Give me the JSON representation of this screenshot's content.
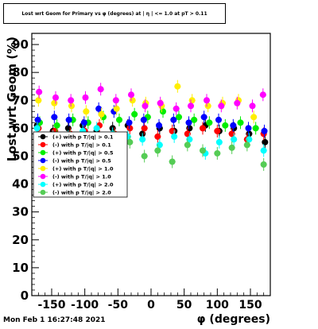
{
  "chart_data": {
    "type": "scatter",
    "title": "Lost wrt Geom for Primary vs φ (degrees) at | η | <= 1.0 at pT > 0.11",
    "xlabel": "φ (degrees)",
    "ylabel": "Lost wrt Geom (%)",
    "xlim": [
      -180,
      180
    ],
    "ylim": [
      0,
      94
    ],
    "xticks": [
      -150,
      -100,
      -50,
      0,
      50,
      100,
      150
    ],
    "yticks": [
      0,
      10,
      20,
      30,
      40,
      50,
      60,
      70,
      80,
      90
    ],
    "legend_position": "left-middle",
    "grid": false,
    "series": [
      {
        "name": "(+) with p T/|q| > 0.1",
        "color": "#000000",
        "x": [
          -172,
          -148,
          -125,
          -103,
          -82,
          -58,
          -35,
          -13,
          13,
          35,
          58,
          82,
          103,
          125,
          148,
          172
        ],
        "y": [
          61,
          59,
          60,
          61,
          59,
          60,
          61,
          58,
          60,
          59,
          60,
          61,
          59,
          60,
          58,
          55
        ]
      },
      {
        "name": "(-) with p T/|q| > 0.1",
        "color": "#ff0000",
        "x": [
          -170,
          -145,
          -122,
          -100,
          -78,
          -55,
          -32,
          -10,
          10,
          32,
          55,
          78,
          100,
          122,
          145,
          170
        ],
        "y": [
          60,
          59,
          58,
          59,
          61,
          58,
          60,
          60,
          57,
          59,
          58,
          60,
          59,
          58,
          56,
          58
        ]
      },
      {
        "name": "(+) with p T/|q| > 0.5",
        "color": "#00ee00",
        "x": [
          -168,
          -142,
          -118,
          -95,
          -72,
          -48,
          -25,
          -5,
          18,
          42,
          65,
          88,
          112,
          135,
          158
        ],
        "y": [
          62,
          61,
          63,
          62,
          64,
          63,
          65,
          64,
          66,
          64,
          63,
          62,
          61,
          62,
          60
        ]
      },
      {
        "name": "(-) with p T/|q| > 0.5",
        "color": "#0000ff",
        "x": [
          -171,
          -146,
          -124,
          -101,
          -79,
          -56,
          -33,
          -11,
          12,
          34,
          57,
          80,
          102,
          124,
          147,
          171
        ],
        "y": [
          63,
          64,
          63,
          62,
          67,
          66,
          62,
          63,
          61,
          63,
          62,
          64,
          63,
          61,
          60,
          59
        ]
      },
      {
        "name": "(+) with p T/|q| > 1.0",
        "color": "#ffee00",
        "x": [
          -170,
          -146,
          -120,
          -98,
          -75,
          -52,
          -28,
          -8,
          16,
          40,
          62,
          86,
          108,
          132,
          155
        ],
        "y": [
          70,
          69,
          68,
          66,
          65,
          67,
          70,
          69,
          68,
          75,
          70,
          68,
          69,
          70,
          64
        ]
      },
      {
        "name": "(-) with p T/|q| > 1.0",
        "color": "#ff00ff",
        "x": [
          -169,
          -144,
          -121,
          -99,
          -76,
          -53,
          -30,
          -9,
          14,
          38,
          60,
          84,
          106,
          130,
          153,
          169
        ],
        "y": [
          73,
          71,
          70,
          71,
          74,
          70,
          72,
          68,
          69,
          67,
          68,
          70,
          68,
          69,
          68,
          72
        ]
      },
      {
        "name": "(+) with p T/|q| > 2.0",
        "color": "#00ffff",
        "x": [
          -172,
          -148,
          -125,
          -103,
          -82,
          -58,
          -35,
          -13,
          13,
          35,
          58,
          82,
          103,
          125,
          148,
          170
        ],
        "y": [
          60,
          57,
          57,
          59,
          60,
          58,
          57,
          56,
          54,
          57,
          56,
          51,
          55,
          56,
          56,
          52
        ]
      },
      {
        "name": "(-) with p T/|q| > 2.0",
        "color": "#55cc55",
        "x": [
          -168,
          -145,
          -122,
          -100,
          -78,
          -55,
          -32,
          -10,
          10,
          32,
          55,
          78,
          100,
          122,
          145,
          170
        ],
        "y": [
          54,
          56,
          57,
          55,
          53,
          57,
          55,
          50,
          52,
          48,
          54,
          52,
          51,
          53,
          54,
          47
        ]
      }
    ]
  },
  "footer": {
    "timestamp": "Mon Feb  1 16:27:48 2021"
  }
}
